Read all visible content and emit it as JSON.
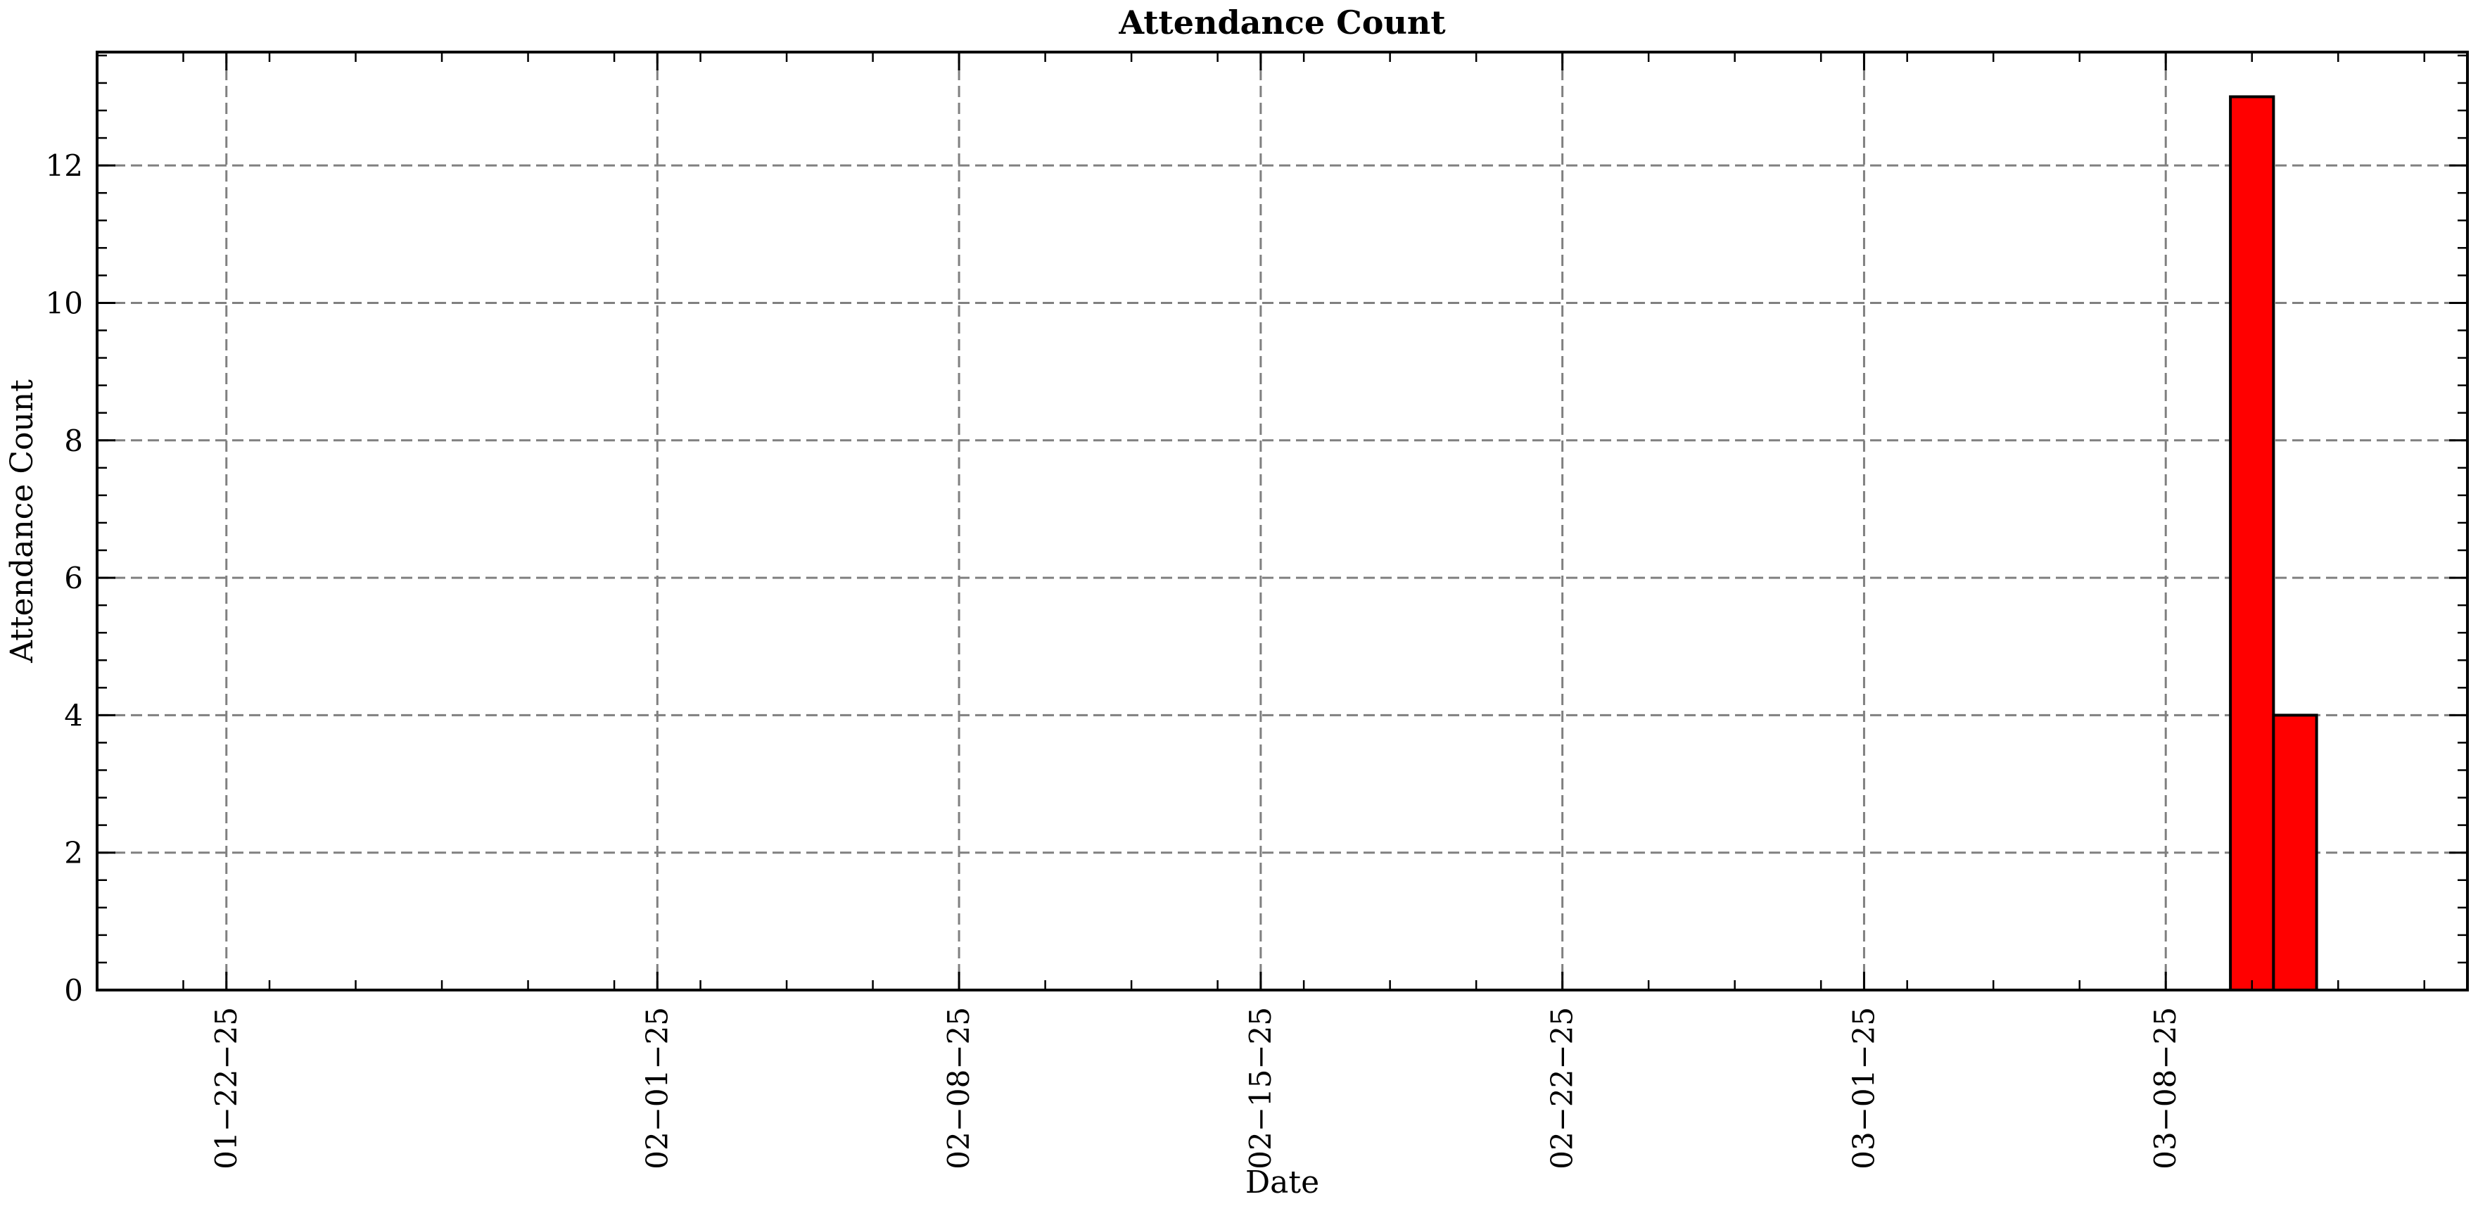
{
  "chart_data": {
    "type": "bar",
    "title": "Attendance Count",
    "xlabel": "Date",
    "ylabel": "Attendance Count",
    "x_ticks": [
      "01-22-25",
      "02-01-25",
      "02-08-25",
      "02-15-25",
      "02-22-25",
      "03-01-25",
      "03-08-25"
    ],
    "y_ticks": [
      0,
      2,
      4,
      6,
      8,
      10,
      12
    ],
    "bars": [
      {
        "date": "03-10-25",
        "value": 13
      },
      {
        "date": "03-11-25",
        "value": 4
      }
    ],
    "xlim": [
      "01-19-25",
      "03-15-25"
    ],
    "ylim": [
      0,
      13.65
    ],
    "grid": true,
    "colors": {
      "bar_fill": "#ff0000",
      "bar_edge": "#000000",
      "grid": "#808080"
    }
  }
}
